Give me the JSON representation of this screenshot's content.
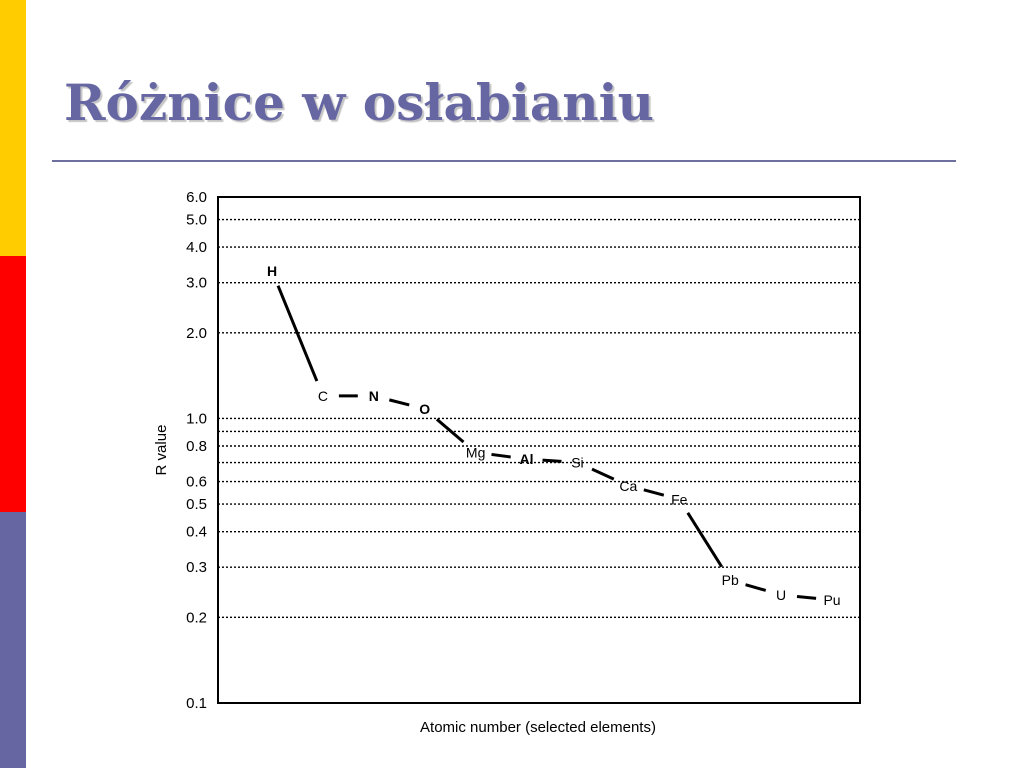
{
  "slide": {
    "title": "Różnice w osłabianiu",
    "colors": {
      "stripe_top": "#ffcc00",
      "stripe_middle": "#ff0000",
      "stripe_bottom": "#6666a3",
      "title": "#6666a3",
      "rule": "#6f6f9f"
    }
  },
  "chart_data": {
    "type": "line",
    "title": "",
    "xlabel": "Atomic number (selected elements)",
    "ylabel": "R value",
    "yscale": "log",
    "ylim": [
      0.1,
      6.0
    ],
    "yticks": [
      {
        "value": 0.1,
        "label": "0.1"
      },
      {
        "value": 0.2,
        "label": "0.2"
      },
      {
        "value": 0.3,
        "label": "0.3"
      },
      {
        "value": 0.4,
        "label": "0.4"
      },
      {
        "value": 0.5,
        "label": "0.5"
      },
      {
        "value": 0.6,
        "label": "0.6"
      },
      {
        "value": 0.8,
        "label": "0.8"
      },
      {
        "value": 1.0,
        "label": "1.0"
      },
      {
        "value": 2.0,
        "label": "2.0"
      },
      {
        "value": 3.0,
        "label": "3.0"
      },
      {
        "value": 4.0,
        "label": "4.0"
      },
      {
        "value": 5.0,
        "label": "5.0"
      },
      {
        "value": 6.0,
        "label": "6.0"
      }
    ],
    "gridlines": [
      0.2,
      0.3,
      0.4,
      0.5,
      0.6,
      0.7,
      0.8,
      0.9,
      1.0,
      2.0,
      3.0,
      4.0,
      5.0
    ],
    "grid": "dotted horizontal",
    "categories": [
      "H",
      "C",
      "N",
      "O",
      "Mg",
      "Al",
      "Si",
      "Ca",
      "Fe",
      "Pb",
      "U",
      "Pu"
    ],
    "values": [
      3.3,
      1.2,
      1.2,
      1.08,
      0.76,
      0.72,
      0.7,
      0.58,
      0.52,
      0.27,
      0.24,
      0.23
    ],
    "line_color": "#000000"
  }
}
